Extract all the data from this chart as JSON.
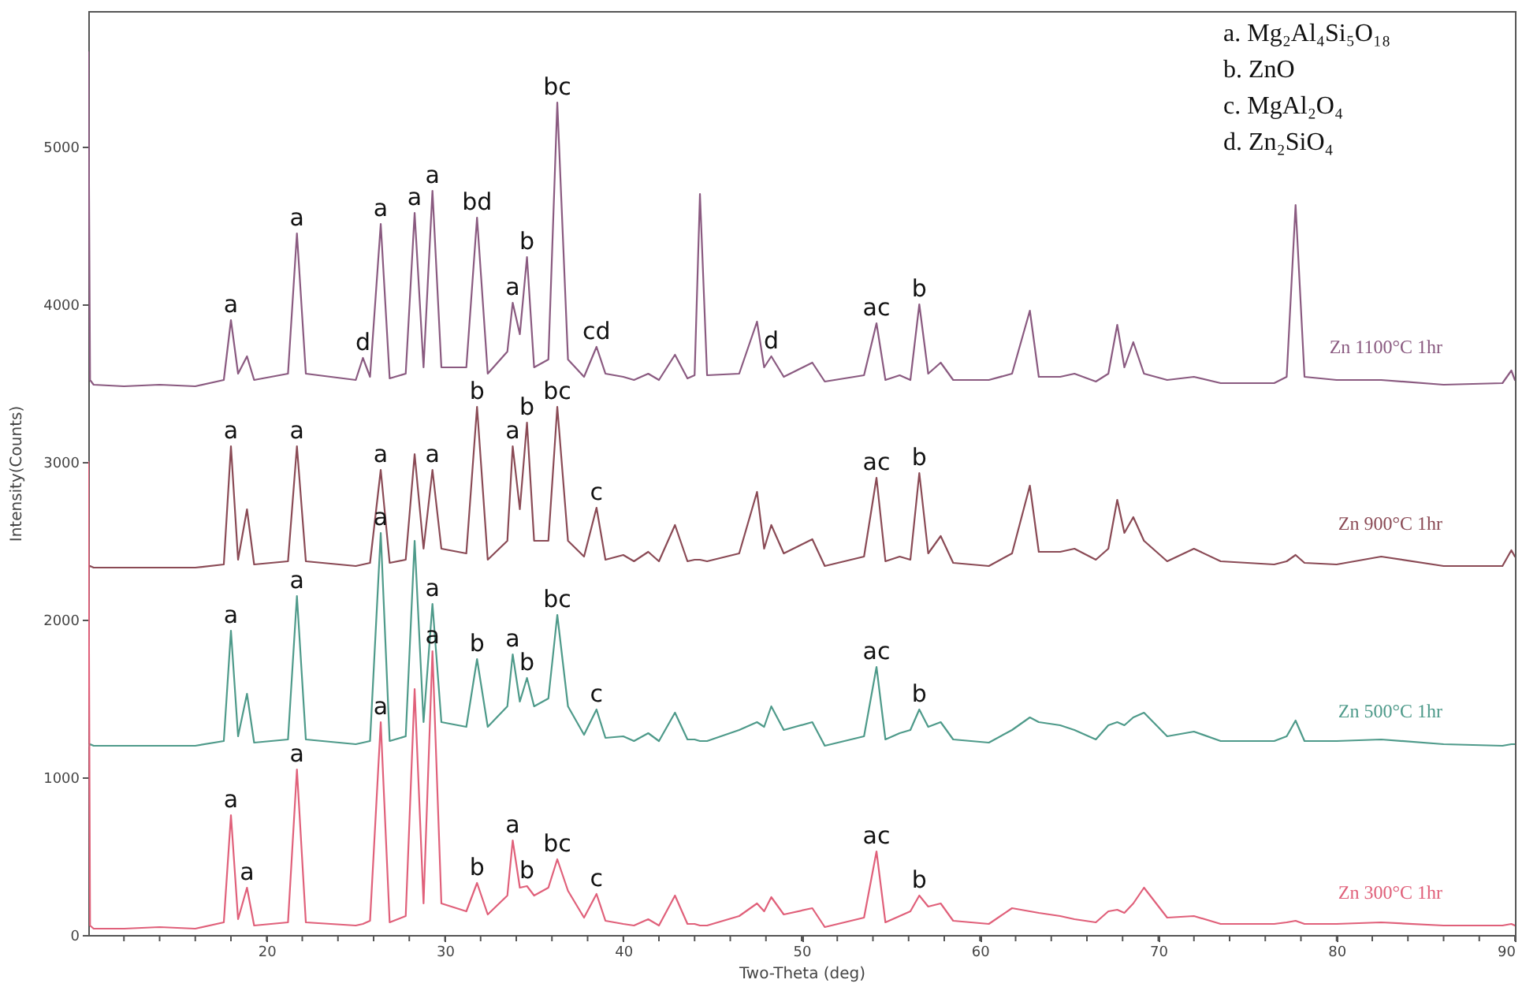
{
  "chart_data": {
    "type": "line",
    "xlabel": "Two-Theta (deg)",
    "ylabel": "Intensity(Counts)",
    "x": [
      10,
      10.1,
      10.3,
      12,
      14,
      16,
      17.6,
      18.0,
      18.4,
      18.9,
      19.3,
      21.2,
      21.7,
      22.2,
      25.0,
      25.4,
      25.8,
      26.4,
      26.9,
      27.8,
      28.3,
      28.8,
      29.3,
      29.8,
      31.2,
      31.8,
      32.4,
      33.5,
      33.8,
      34.2,
      34.6,
      35.0,
      35.8,
      36.3,
      36.9,
      37.8,
      38.5,
      39.0,
      40.0,
      40.6,
      41.4,
      42.0,
      42.9,
      43.6,
      44.0,
      44.3,
      44.7,
      46.5,
      47.5,
      47.9,
      48.3,
      49.0,
      50.6,
      51.3,
      53.5,
      54.2,
      54.7,
      55.5,
      56.1,
      56.6,
      57.1,
      57.8,
      58.5,
      60.5,
      61.8,
      62.8,
      63.3,
      64.5,
      65.3,
      66.5,
      67.2,
      67.7,
      68.1,
      68.6,
      69.2,
      70.5,
      72.0,
      73.5,
      76.5,
      77.2,
      77.7,
      78.2,
      80,
      82.5,
      86,
      89.3,
      89.8,
      90
    ],
    "series": [
      {
        "name": "Zn 1100°C 1hr",
        "color": "#8a5a80",
        "values": [
          5600,
          3520,
          3490,
          3480,
          3490,
          3480,
          3520,
          3900,
          3560,
          3670,
          3520,
          3560,
          4450,
          3560,
          3520,
          3660,
          3540,
          4510,
          3530,
          3560,
          4580,
          3600,
          4720,
          3600,
          3600,
          4550,
          3560,
          3700,
          4010,
          3810,
          4300,
          3600,
          3650,
          5280,
          3650,
          3540,
          3730,
          3560,
          3540,
          3520,
          3560,
          3520,
          3680,
          3530,
          3550,
          4700,
          3550,
          3560,
          3890,
          3600,
          3670,
          3540,
          3630,
          3510,
          3550,
          3880,
          3520,
          3550,
          3520,
          4000,
          3560,
          3630,
          3520,
          3520,
          3560,
          3960,
          3540,
          3540,
          3560,
          3510,
          3560,
          3870,
          3600,
          3760,
          3560,
          3520,
          3540,
          3500,
          3500,
          3540,
          4630,
          3540,
          3520,
          3520,
          3490,
          3500,
          3580,
          3520
        ]
      },
      {
        "name": "Zn 900°C 1hr",
        "color": "#8a4a55",
        "values": [
          2330,
          2340,
          2330,
          2330,
          2330,
          2330,
          2350,
          3100,
          2380,
          2700,
          2350,
          2370,
          3100,
          2370,
          2340,
          2350,
          2360,
          2950,
          2360,
          2380,
          3050,
          2450,
          2950,
          2450,
          2420,
          3350,
          2380,
          2500,
          3100,
          2700,
          3250,
          2500,
          2500,
          3350,
          2500,
          2400,
          2710,
          2380,
          2410,
          2370,
          2430,
          2370,
          2600,
          2370,
          2380,
          2380,
          2370,
          2420,
          2810,
          2450,
          2600,
          2420,
          2510,
          2340,
          2400,
          2900,
          2370,
          2400,
          2380,
          2930,
          2420,
          2530,
          2360,
          2340,
          2420,
          2850,
          2430,
          2430,
          2450,
          2380,
          2450,
          2760,
          2550,
          2650,
          2500,
          2370,
          2450,
          2370,
          2350,
          2370,
          2410,
          2360,
          2350,
          2400,
          2340,
          2340,
          2440,
          2400
        ]
      },
      {
        "name": "Zn 500°C 1hr",
        "color": "#4e9a8a",
        "values": [
          1200,
          1210,
          1200,
          1200,
          1200,
          1200,
          1230,
          1930,
          1260,
          1530,
          1220,
          1240,
          2150,
          1240,
          1210,
          1220,
          1230,
          2550,
          1230,
          1260,
          2500,
          1350,
          2100,
          1350,
          1320,
          1750,
          1320,
          1450,
          1780,
          1480,
          1630,
          1450,
          1500,
          2030,
          1450,
          1270,
          1430,
          1250,
          1260,
          1230,
          1280,
          1230,
          1410,
          1240,
          1240,
          1230,
          1230,
          1300,
          1350,
          1320,
          1450,
          1300,
          1350,
          1200,
          1260,
          1700,
          1240,
          1280,
          1300,
          1430,
          1320,
          1350,
          1240,
          1220,
          1300,
          1380,
          1350,
          1330,
          1300,
          1240,
          1330,
          1350,
          1330,
          1380,
          1410,
          1260,
          1290,
          1230,
          1230,
          1260,
          1360,
          1230,
          1230,
          1240,
          1210,
          1200,
          1210,
          1210
        ]
      },
      {
        "name": "Zn 300°C 1hr",
        "color": "#e0607a",
        "values": [
          3000,
          60,
          40,
          40,
          50,
          40,
          80,
          760,
          100,
          300,
          60,
          80,
          1050,
          80,
          60,
          70,
          90,
          1350,
          80,
          120,
          1560,
          200,
          1800,
          200,
          150,
          330,
          130,
          250,
          600,
          300,
          310,
          250,
          300,
          480,
          280,
          110,
          260,
          90,
          70,
          60,
          100,
          60,
          250,
          70,
          70,
          60,
          60,
          120,
          200,
          150,
          240,
          130,
          170,
          50,
          110,
          530,
          80,
          120,
          150,
          250,
          180,
          200,
          90,
          70,
          170,
          150,
          140,
          120,
          100,
          80,
          150,
          160,
          140,
          200,
          300,
          110,
          120,
          70,
          70,
          80,
          90,
          70,
          70,
          80,
          60,
          60,
          70,
          60
        ]
      }
    ],
    "xlim": [
      10,
      90
    ],
    "xticks": [
      {
        "value": 12,
        "label": null
      },
      {
        "value": 14,
        "label": null
      },
      {
        "value": 16,
        "label": null
      },
      {
        "value": 18,
        "label": null
      },
      20,
      {
        "value": 22,
        "label": null
      },
      {
        "value": 24,
        "label": null
      },
      {
        "value": 26,
        "label": null
      },
      {
        "value": 28,
        "label": null
      },
      30,
      {
        "value": 32,
        "label": null
      },
      {
        "value": 34,
        "label": null
      },
      {
        "value": 36,
        "label": null
      },
      {
        "value": 38,
        "label": null
      },
      40,
      {
        "value": 42,
        "label": null
      },
      {
        "value": 44,
        "label": null
      },
      {
        "value": 46,
        "label": null
      },
      {
        "value": 48,
        "label": null
      },
      50,
      {
        "value": 52,
        "label": null
      },
      {
        "value": 54,
        "label": null
      },
      {
        "value": 56,
        "label": null
      },
      {
        "value": 58,
        "label": null
      },
      60,
      {
        "value": 62,
        "label": null
      },
      {
        "value": 64,
        "label": null
      },
      {
        "value": 66,
        "label": null
      },
      {
        "value": 68,
        "label": null
      },
      70,
      {
        "value": 72,
        "label": null
      },
      {
        "value": 74,
        "label": null
      },
      {
        "value": 76,
        "label": null
      },
      {
        "value": 78,
        "label": null
      },
      80,
      {
        "value": 82,
        "label": null
      },
      {
        "value": 84,
        "label": null
      },
      {
        "value": 86,
        "label": null
      },
      {
        "value": 88,
        "label": null
      },
      90
    ],
    "ylim": [
      0,
      5860
    ],
    "yticks": [
      0,
      1000,
      2000,
      3000,
      4000,
      5000
    ],
    "grid": false,
    "annotations": [
      "a. Mg₂Al₄Si₅O₁₈",
      "b. ZnO",
      "c. MgAl₂O₄",
      "d. Zn₂SiO₄",
      {
        "text": "a",
        "x": 18.0,
        "y": 3900
      },
      {
        "text": "a",
        "x": 21.7,
        "y": 4450
      },
      {
        "text": "d",
        "x": 25.4,
        "y": 3660
      },
      {
        "text": "a",
        "x": 26.4,
        "y": 4510
      },
      {
        "text": "a",
        "x": 28.3,
        "y": 4580
      },
      {
        "text": "a",
        "x": 29.3,
        "y": 4720
      },
      {
        "text": "bd",
        "x": 31.8,
        "y": 4550
      },
      {
        "text": "a",
        "x": 33.8,
        "y": 4010
      },
      {
        "text": "b",
        "x": 34.6,
        "y": 4300
      },
      {
        "text": "bc",
        "x": 36.3,
        "y": 5280
      },
      {
        "text": "cd",
        "x": 38.5,
        "y": 3730
      },
      {
        "text": "d",
        "x": 48.3,
        "y": 3670
      },
      {
        "text": "ac",
        "x": 54.2,
        "y": 3880
      },
      {
        "text": "b",
        "x": 56.6,
        "y": 4000
      },
      {
        "text": "a",
        "x": 18.0,
        "y": 3100
      },
      {
        "text": "a",
        "x": 21.7,
        "y": 3100
      },
      {
        "text": "a",
        "x": 26.4,
        "y": 2950
      },
      {
        "text": "a",
        "x": 29.3,
        "y": 2950
      },
      {
        "text": "b",
        "x": 31.8,
        "y": 3350
      },
      {
        "text": "a",
        "x": 33.8,
        "y": 3100
      },
      {
        "text": "b",
        "x": 34.6,
        "y": 3250
      },
      {
        "text": "bc",
        "x": 36.3,
        "y": 3350
      },
      {
        "text": "c",
        "x": 38.5,
        "y": 2710
      },
      {
        "text": "ac",
        "x": 54.2,
        "y": 2900
      },
      {
        "text": "b",
        "x": 56.6,
        "y": 2930
      },
      {
        "text": "a",
        "x": 18.0,
        "y": 1930
      },
      {
        "text": "a",
        "x": 21.7,
        "y": 2150
      },
      {
        "text": "a",
        "x": 26.4,
        "y": 2550
      },
      {
        "text": "a",
        "x": 29.3,
        "y": 2100
      },
      {
        "text": "b",
        "x": 31.8,
        "y": 1750
      },
      {
        "text": "a",
        "x": 33.8,
        "y": 1780
      },
      {
        "text": "b",
        "x": 34.6,
        "y": 1630
      },
      {
        "text": "bc",
        "x": 36.3,
        "y": 2030
      },
      {
        "text": "c",
        "x": 38.5,
        "y": 1430
      },
      {
        "text": "ac",
        "x": 54.2,
        "y": 1700
      },
      {
        "text": "b",
        "x": 56.6,
        "y": 1430
      },
      {
        "text": "a",
        "x": 18.0,
        "y": 760
      },
      {
        "text": "a",
        "x": 18.9,
        "y": 300
      },
      {
        "text": "a",
        "x": 21.7,
        "y": 1050
      },
      {
        "text": "a",
        "x": 26.4,
        "y": 1350
      },
      {
        "text": "a",
        "x": 29.3,
        "y": 1800
      },
      {
        "text": "b",
        "x": 31.8,
        "y": 330
      },
      {
        "text": "a",
        "x": 33.8,
        "y": 600
      },
      {
        "text": "b",
        "x": 34.6,
        "y": 310
      },
      {
        "text": "bc",
        "x": 36.3,
        "y": 480
      },
      {
        "text": "c",
        "x": 38.5,
        "y": 260
      },
      {
        "text": "ac",
        "x": 54.2,
        "y": 530
      },
      {
        "text": "b",
        "x": 56.6,
        "y": 250
      }
    ]
  }
}
